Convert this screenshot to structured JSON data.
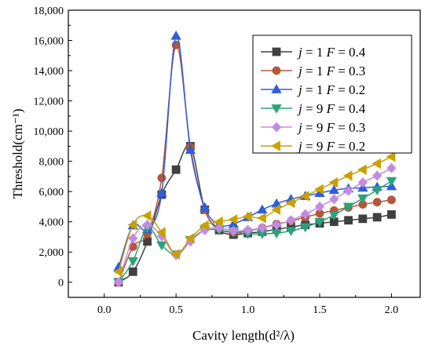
{
  "chart_data": {
    "type": "line",
    "xlabel": "Cavity length(d²/λ)",
    "ylabel": "Threshold(cm⁻¹)",
    "xlim": [
      -0.25,
      2.2
    ],
    "ylim": [
      -1000,
      18000
    ],
    "xticks": [
      0.0,
      0.5,
      1.0,
      1.5,
      2.0
    ],
    "xtick_labels": [
      "0.0",
      "0.5",
      "1.0",
      "1.5",
      "2.0"
    ],
    "yticks": [
      0,
      2000,
      4000,
      6000,
      8000,
      10000,
      12000,
      14000,
      16000,
      18000
    ],
    "ytick_labels": [
      "0",
      "2,000",
      "4,000",
      "6,000",
      "8,000",
      "10,000",
      "12,000",
      "14,000",
      "16,000",
      "18,000"
    ],
    "grid": false,
    "legend_position": "top-right",
    "x": [
      0.1,
      0.2,
      0.3,
      0.4,
      0.5,
      0.6,
      0.7,
      0.8,
      0.9,
      1.0,
      1.1,
      1.2,
      1.3,
      1.4,
      1.5,
      1.6,
      1.7,
      1.8,
      1.9,
      2.0
    ],
    "series": [
      {
        "name": "j = 1 F = 0.4",
        "legend": {
          "prefix": "j",
          "mid": " = 1 ",
          "var": "F",
          "suffix": " = 0.4"
        },
        "color": "#404040",
        "marker": "square",
        "values": [
          0,
          700,
          2700,
          5800,
          7450,
          9000,
          4800,
          3450,
          3150,
          3250,
          3350,
          3500,
          3650,
          3800,
          3900,
          4000,
          4100,
          4200,
          4300,
          4480
        ]
      },
      {
        "name": "j = 1 F = 0.3",
        "legend": {
          "prefix": "j",
          "mid": " = 1 ",
          "var": "F",
          "suffix": " = 0.3"
        },
        "color": "#b5573a",
        "marker": "circle",
        "values": [
          0,
          2350,
          3200,
          6900,
          15700,
          8950,
          4800,
          3550,
          3300,
          3400,
          3600,
          3850,
          4050,
          4300,
          4550,
          4750,
          4950,
          5150,
          5300,
          5450
        ]
      },
      {
        "name": "j = 1 F = 0.2",
        "legend": {
          "prefix": "j",
          "mid": " = 1 ",
          "var": "F",
          "suffix": " = 0.2"
        },
        "color": "#2f5ed8",
        "marker": "triangle-up",
        "values": [
          1000,
          3750,
          3500,
          5900,
          16300,
          8750,
          4950,
          3800,
          3850,
          4300,
          4800,
          5200,
          5500,
          5700,
          5900,
          6100,
          6200,
          6250,
          6300,
          6350
        ]
      },
      {
        "name": "j = 9 F = 0.4",
        "legend": {
          "prefix": "j",
          "mid": " = 9 ",
          "var": "F",
          "suffix": " = 0.4"
        },
        "color": "#2aa27a",
        "marker": "triangle-down",
        "values": [
          0,
          1400,
          3600,
          2450,
          1850,
          2800,
          3450,
          3450,
          3300,
          3200,
          3200,
          3250,
          3400,
          3650,
          4000,
          4450,
          5000,
          5550,
          6100,
          6700
        ]
      },
      {
        "name": "j = 9 F = 0.3",
        "legend": {
          "prefix": "j",
          "mid": " = 9 ",
          "var": "F",
          "suffix": " = 0.3"
        },
        "color": "#c38be0",
        "marker": "diamond",
        "values": [
          0,
          2900,
          3800,
          3050,
          1800,
          2700,
          3450,
          3600,
          3400,
          3450,
          3600,
          3800,
          4100,
          4500,
          5000,
          5500,
          6050,
          6600,
          7050,
          7550
        ]
      },
      {
        "name": "j = 9 F = 0.2",
        "legend": {
          "prefix": "j",
          "mid": " = 9 ",
          "var": "F",
          "suffix": " = 0.2"
        },
        "color": "#c9a000",
        "marker": "triangle-left",
        "values": [
          700,
          3800,
          4400,
          3300,
          1850,
          2900,
          3750,
          4000,
          4150,
          4350,
          4250,
          4800,
          5250,
          5700,
          6150,
          6600,
          7050,
          7450,
          7850,
          8300
        ]
      }
    ]
  }
}
